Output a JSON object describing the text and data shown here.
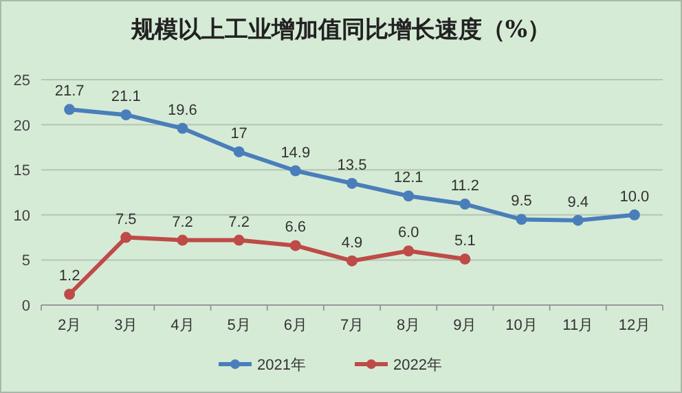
{
  "chart_data": {
    "type": "line",
    "title": "规模以上工业增加值同比增长速度（%）",
    "categories": [
      "2月",
      "3月",
      "4月",
      "5月",
      "6月",
      "7月",
      "8月",
      "9月",
      "10月",
      "11月",
      "12月"
    ],
    "series": [
      {
        "name": "2021年",
        "color": "#4a7ebb",
        "values": [
          21.7,
          21.1,
          19.6,
          17,
          14.9,
          13.5,
          12.1,
          11.2,
          9.5,
          9.4,
          10.0
        ],
        "value_labels": [
          "21.7",
          "21.1",
          "19.6",
          "17",
          "14.9",
          "13.5",
          "12.1",
          "11.2",
          "9.5",
          "9.4",
          "10.0"
        ]
      },
      {
        "name": "2022年",
        "color": "#be4b48",
        "values": [
          1.2,
          7.5,
          7.2,
          7.2,
          6.6,
          4.9,
          6.0,
          5.1,
          null,
          null,
          null
        ],
        "value_labels": [
          "1.2",
          "7.5",
          "7.2",
          "7.2",
          "6.6",
          "4.9",
          "6.0",
          "5.1",
          null,
          null,
          null
        ]
      }
    ],
    "ylim": [
      0,
      25
    ],
    "yticks": [
      0,
      5,
      10,
      15,
      20,
      25
    ],
    "grid": "y",
    "legend": "bottom",
    "marker": "circle",
    "line_style": "solid"
  }
}
